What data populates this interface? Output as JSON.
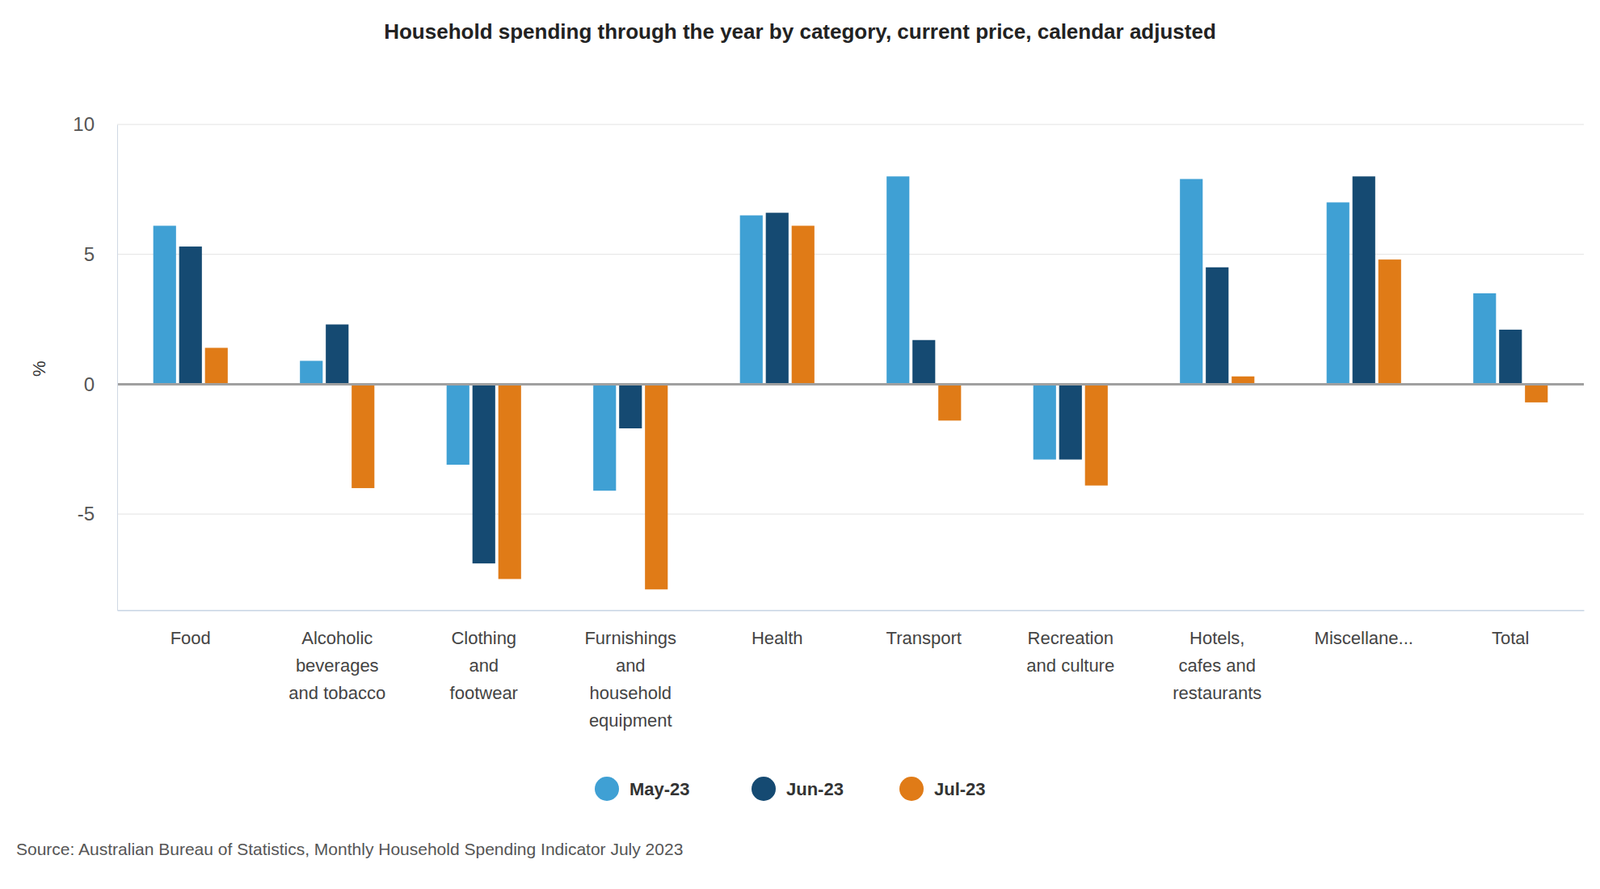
{
  "chart_data": {
    "type": "bar",
    "title": "Household spending through the year by category, current price, calendar adjusted",
    "y_label": "%",
    "source": "Source: Australian Bureau of Statistics, Monthly Household Spending Indicator July 2023",
    "categories": [
      "Food",
      "Alcoholic beverages and tobacco",
      "Clothing and footwear",
      "Furnishings and household equipment",
      "Health",
      "Transport",
      "Recreation and culture",
      "Hotels, cafes and restaurants",
      "Miscellane...",
      "Total"
    ],
    "series": [
      {
        "name": "May-23",
        "color": "#3fa0d4",
        "values": [
          6.1,
          0.9,
          -3.1,
          -4.1,
          6.5,
          8.0,
          -2.9,
          7.9,
          7.0,
          3.5
        ]
      },
      {
        "name": "Jun-23",
        "color": "#154a72",
        "values": [
          5.3,
          2.3,
          -6.9,
          -1.7,
          6.6,
          1.7,
          -2.9,
          4.5,
          8.0,
          2.1
        ]
      },
      {
        "name": "Jul-23",
        "color": "#e07b17",
        "values": [
          1.4,
          -4.0,
          -7.5,
          -7.9,
          6.1,
          -1.4,
          -3.9,
          0.3,
          4.8,
          -0.7
        ]
      }
    ],
    "ylim": [
      -8.7,
      10
    ],
    "yticks": [
      -5,
      0,
      5,
      10
    ],
    "grid": true,
    "legend": "bottom"
  }
}
